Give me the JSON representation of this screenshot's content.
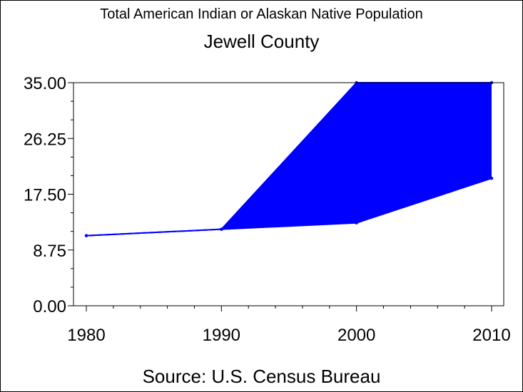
{
  "chart_data": {
    "type": "area",
    "title": "Total American Indian or Alaskan Native Population",
    "subtitle": "Jewell County",
    "source": "Source: U.S. Census Bureau",
    "xlabel": "",
    "ylabel": "",
    "x": [
      1980,
      1990,
      2000,
      2010
    ],
    "x_tick_labels": [
      "1980",
      "1990",
      "2000",
      "2010"
    ],
    "ylim": [
      0,
      35
    ],
    "y_ticks": [
      0,
      8.75,
      17.5,
      26.25,
      35
    ],
    "y_tick_labels": [
      "0.00",
      "8.75",
      "17.50",
      "26.25",
      "35.00"
    ],
    "series": [
      {
        "values": [
          11,
          12,
          13,
          20
        ]
      },
      {
        "values": [
          11,
          12,
          35,
          35
        ]
      }
    ],
    "fill_between_series": true,
    "grid": false,
    "colors": {
      "series": "#0000ff",
      "fill": "#0000ff",
      "axis": "#000000",
      "background": "#ffffff"
    }
  }
}
